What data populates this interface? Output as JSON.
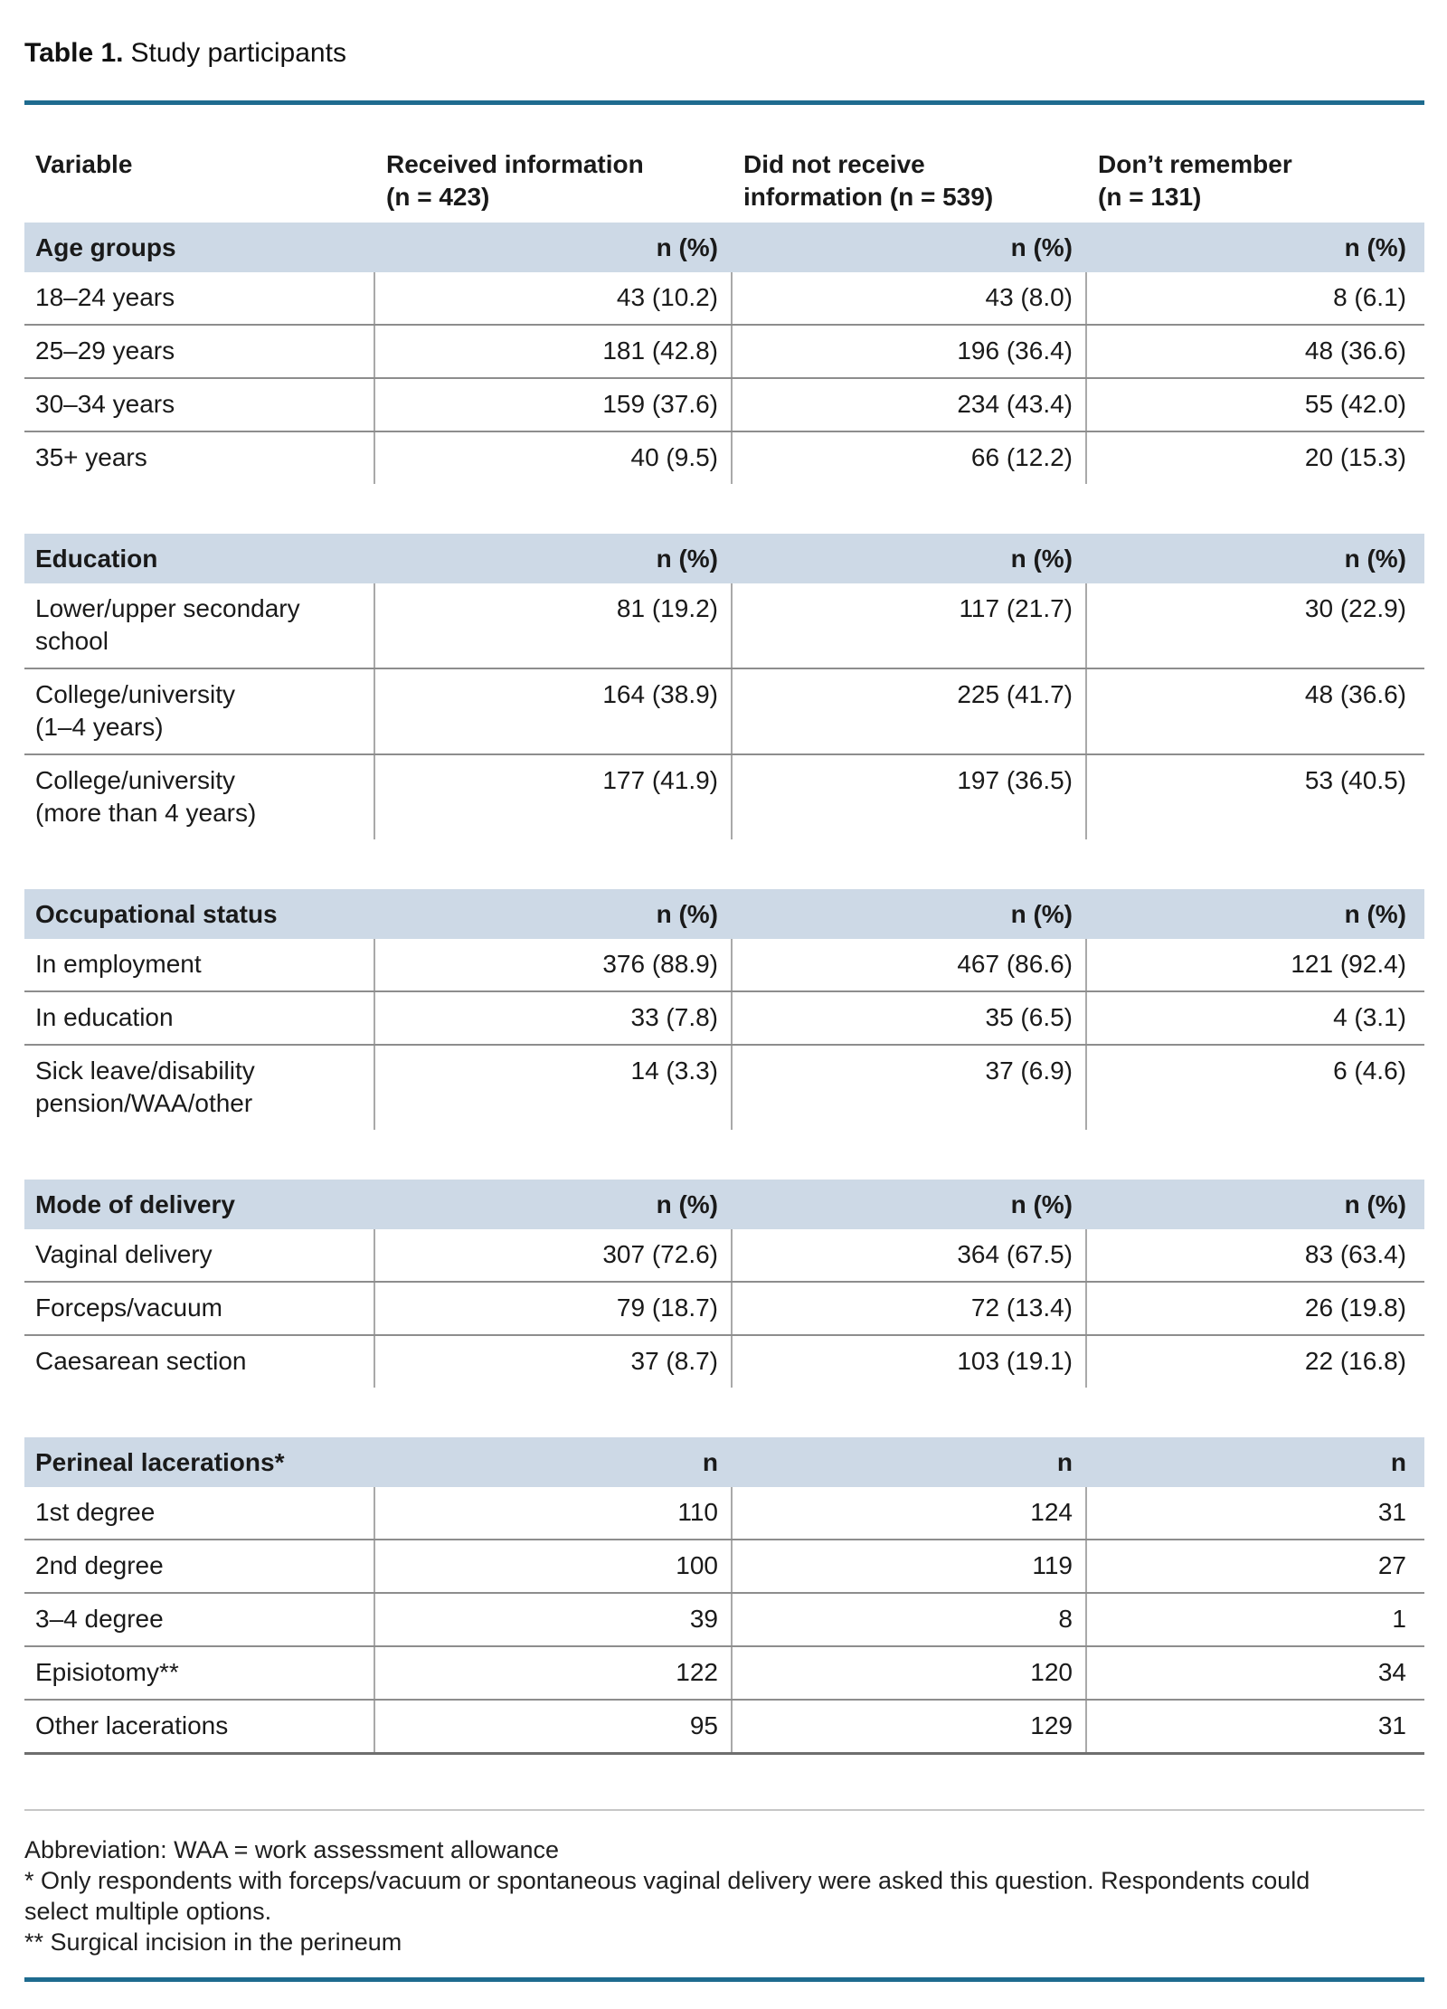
{
  "title": {
    "prefix": "Table 1.",
    "text": "Study participants"
  },
  "table": {
    "column_headers": [
      "Variable",
      "Received information\n(n = 423)",
      "Did not receive\ninformation (n = 539)",
      "Don’t remember\n(n = 131)"
    ],
    "sections": [
      {
        "label": "Age groups",
        "unit": "n (%)",
        "rows": [
          {
            "label": "18–24 years",
            "values": [
              "43 (10.2)",
              "43 (8.0)",
              "8 (6.1)"
            ]
          },
          {
            "label": "25–29 years",
            "values": [
              "181 (42.8)",
              "196 (36.4)",
              "48 (36.6)"
            ]
          },
          {
            "label": "30–34 years",
            "values": [
              "159 (37.6)",
              "234 (43.4)",
              "55 (42.0)"
            ]
          },
          {
            "label": "35+ years",
            "values": [
              "40 (9.5)",
              "66 (12.2)",
              "20 (15.3)"
            ]
          }
        ]
      },
      {
        "label": "Education",
        "unit": "n (%)",
        "rows": [
          {
            "label": "Lower/upper secondary\nschool",
            "values": [
              "81 (19.2)",
              "117 (21.7)",
              "30 (22.9)"
            ]
          },
          {
            "label": "College/university\n(1–4 years)",
            "values": [
              "164 (38.9)",
              "225 (41.7)",
              "48 (36.6)"
            ]
          },
          {
            "label": "College/university\n(more than 4 years)",
            "values": [
              "177 (41.9)",
              "197 (36.5)",
              "53 (40.5)"
            ]
          }
        ]
      },
      {
        "label": "Occupational status",
        "unit": "n (%)",
        "rows": [
          {
            "label": "In employment",
            "values": [
              "376 (88.9)",
              "467 (86.6)",
              "121 (92.4)"
            ]
          },
          {
            "label": "In education",
            "values": [
              "33 (7.8)",
              "35 (6.5)",
              "4 (3.1)"
            ]
          },
          {
            "label": "Sick leave/disability\npension/WAA/other",
            "values": [
              "14 (3.3)",
              "37 (6.9)",
              "6 (4.6)"
            ]
          }
        ]
      },
      {
        "label": "Mode of delivery",
        "unit": "n (%)",
        "rows": [
          {
            "label": "Vaginal delivery",
            "values": [
              "307 (72.6)",
              "364 (67.5)",
              "83 (63.4)"
            ]
          },
          {
            "label": "Forceps/vacuum",
            "values": [
              "79 (18.7)",
              "72 (13.4)",
              "26 (19.8)"
            ]
          },
          {
            "label": "Caesarean section",
            "values": [
              "37 (8.7)",
              "103 (19.1)",
              "22 (16.8)"
            ]
          }
        ]
      },
      {
        "label": "Perineal lacerations*",
        "unit": "n",
        "rows": [
          {
            "label": "1st degree",
            "values": [
              "110",
              "124",
              "31"
            ]
          },
          {
            "label": "2nd degree",
            "values": [
              "100",
              "119",
              "27"
            ]
          },
          {
            "label": "3–4 degree",
            "values": [
              "39",
              "8",
              "1"
            ]
          },
          {
            "label": "Episiotomy**",
            "values": [
              "122",
              "120",
              "34"
            ]
          },
          {
            "label": "Other lacerations",
            "values": [
              "95",
              "129",
              "31"
            ]
          }
        ]
      }
    ]
  },
  "footnotes": [
    "Abbreviation: WAA = work assessment allowance",
    "* Only respondents with forceps/vacuum or spontaneous vaginal delivery were asked this question. Respondents could select multiple options.",
    "** Surgical incision in the perineum"
  ],
  "colors": {
    "accent_rule": "#1e6b8f",
    "section_bar": "#cdd9e6"
  }
}
